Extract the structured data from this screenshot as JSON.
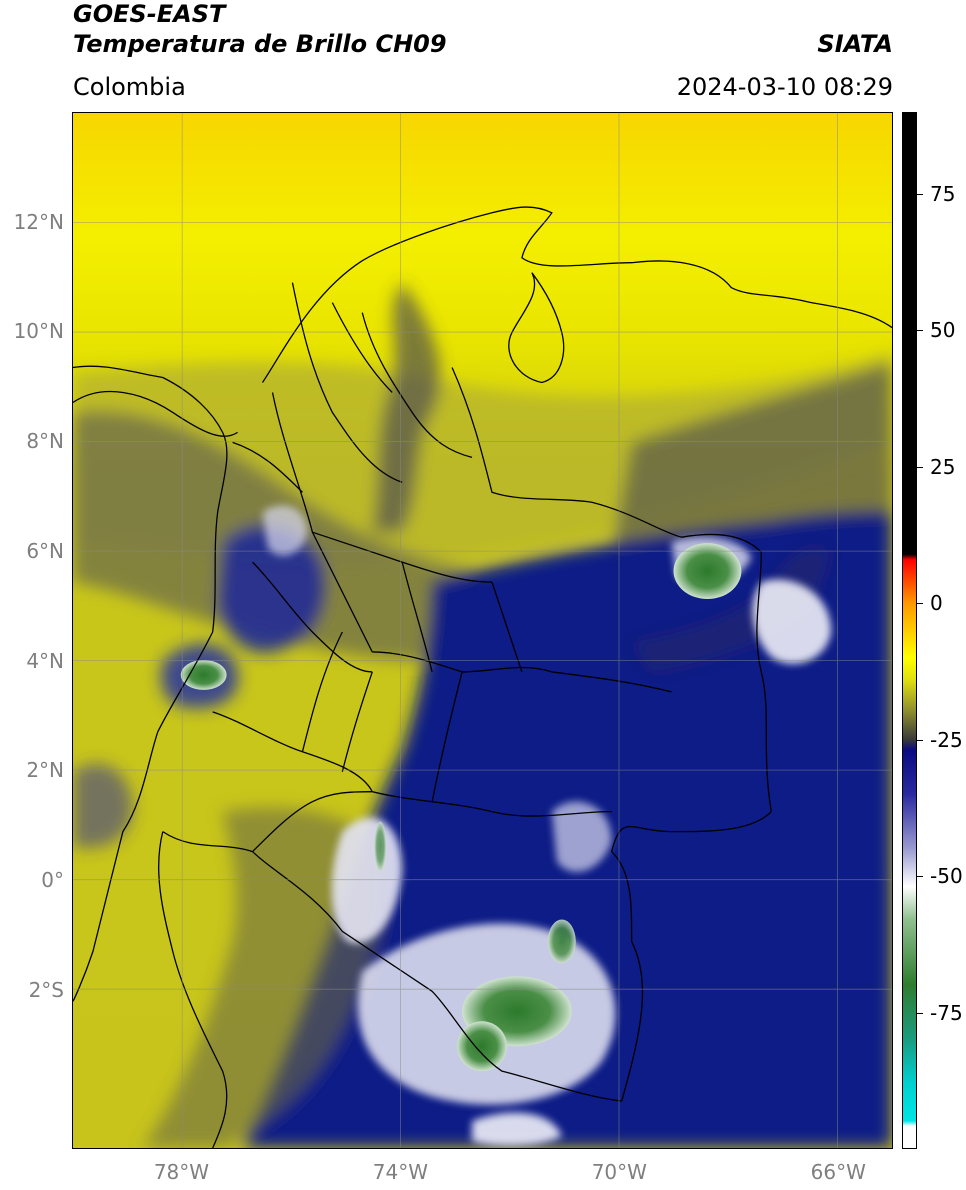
{
  "header": {
    "title_line1": "GOES-EAST",
    "title_line2": "Temperatura de Brillo CH09",
    "agency": "SIATA",
    "region": "Colombia",
    "datetime": "2024-03-10 08:29"
  },
  "map": {
    "lon_range": [
      -80,
      -65
    ],
    "lat_range": [
      -4.9,
      14
    ],
    "lat_ticks": [
      {
        "value": 12,
        "label": "12°N"
      },
      {
        "value": 10,
        "label": "10°N"
      },
      {
        "value": 8,
        "label": "8°N"
      },
      {
        "value": 6,
        "label": "6°N"
      },
      {
        "value": 4,
        "label": "4°N"
      },
      {
        "value": 2,
        "label": "2°N"
      },
      {
        "value": 0,
        "label": "0°"
      },
      {
        "value": -2,
        "label": "2°S"
      }
    ],
    "lon_ticks": [
      {
        "value": -78,
        "label": "78°W"
      },
      {
        "value": -74,
        "label": "74°W"
      },
      {
        "value": -70,
        "label": "70°W"
      },
      {
        "value": -66,
        "label": "66°W"
      }
    ],
    "grid": true,
    "colors": {
      "warm_yellow": "#f5ee00",
      "olive": "#b8b620",
      "gray": "#5a5a48",
      "deep_blue": "#0c1b8a",
      "white": "#f2f2f8",
      "green": "#3b8a3a"
    }
  },
  "colorbar": {
    "range": [
      -100,
      90
    ],
    "ticks": [
      {
        "value": 75,
        "label": "75"
      },
      {
        "value": 50,
        "label": "50"
      },
      {
        "value": 25,
        "label": "25"
      },
      {
        "value": 0,
        "label": "0"
      },
      {
        "value": -25,
        "label": "-25"
      },
      {
        "value": -50,
        "label": "-50"
      },
      {
        "value": -75,
        "label": "-75"
      }
    ],
    "colors": [
      "#ffffff",
      "#00e5e5",
      "#1a9c80",
      "#2f7d2f",
      "#8fc08f",
      "#ffffff",
      "#7a7ab8",
      "#0a0a82",
      "#3a3a3a",
      "#a8a820",
      "#ffff00",
      "#ff9900",
      "#ff0000",
      "#000000"
    ]
  }
}
